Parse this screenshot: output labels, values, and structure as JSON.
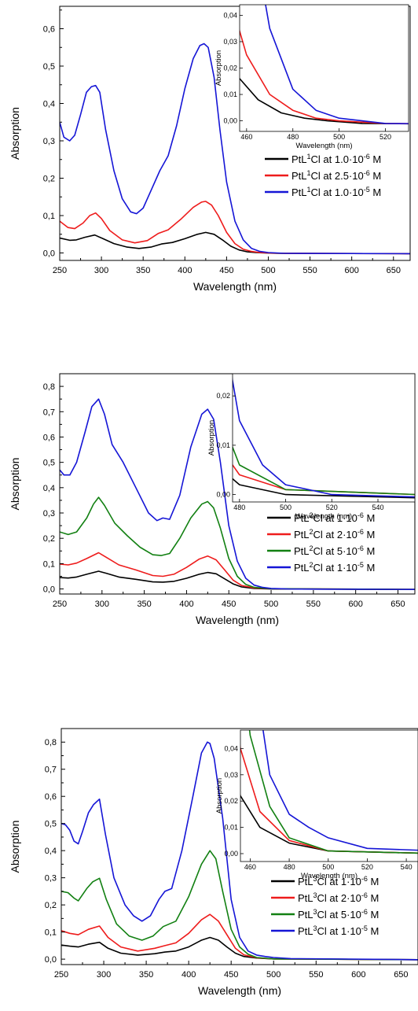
{
  "chart_data": [
    {
      "type": "line",
      "xlabel": "Wavelength (nm)",
      "ylabel": "Absorption",
      "xlim": [
        250,
        670
      ],
      "ylim": [
        -0.02,
        0.66
      ],
      "xticks": [
        "250",
        "300",
        "350",
        "400",
        "450",
        "500",
        "550",
        "600",
        "650"
      ],
      "yticks": [
        "0,0",
        "0,1",
        "0,2",
        "0,3",
        "0,4",
        "0,5",
        "0,6"
      ],
      "legend": "right",
      "series": [
        {
          "name": "PtL1Cl at 1.0·10-6 M",
          "label_parts": {
            "a": "PtL",
            "sup1": "1",
            "b": "Cl at 1.0·10",
            "sup2": "-6",
            "c": " M"
          },
          "color": "#000000",
          "x": [
            250,
            262,
            270,
            280,
            292,
            302,
            315,
            330,
            345,
            360,
            372,
            385,
            400,
            415,
            425,
            435,
            445,
            455,
            465,
            475,
            485,
            495,
            510,
            670
          ],
          "y": [
            0.04,
            0.034,
            0.035,
            0.042,
            0.048,
            0.038,
            0.025,
            0.016,
            0.012,
            0.016,
            0.024,
            0.028,
            0.038,
            0.05,
            0.055,
            0.05,
            0.035,
            0.018,
            0.008,
            0.003,
            0.001,
            0.0,
            -0.001,
            -0.002
          ]
        },
        {
          "name": "PtL1Cl at 2.5·10-6 M",
          "label_parts": {
            "a": "PtL",
            "sup1": "1",
            "b": "Cl at 2.5·10",
            "sup2": "-6",
            "c": " M"
          },
          "color": "#ee1c1c",
          "x": [
            250,
            260,
            268,
            278,
            286,
            293,
            300,
            310,
            325,
            340,
            355,
            368,
            380,
            395,
            410,
            420,
            425,
            432,
            440,
            450,
            460,
            470,
            480,
            490,
            500,
            520,
            670
          ],
          "y": [
            0.085,
            0.068,
            0.065,
            0.08,
            0.1,
            0.107,
            0.092,
            0.06,
            0.035,
            0.027,
            0.033,
            0.052,
            0.062,
            0.09,
            0.122,
            0.136,
            0.138,
            0.128,
            0.1,
            0.055,
            0.025,
            0.01,
            0.004,
            0.001,
            0.0,
            -0.001,
            -0.002
          ]
        },
        {
          "name": "PtL1Cl at 1.0·10-5 M",
          "label_parts": {
            "a": "PtL",
            "sup1": "1",
            "b": "Cl at 1.0·10",
            "sup2": "-5",
            "c": " M"
          },
          "color": "#1515d6",
          "x": [
            250,
            255,
            262,
            268,
            275,
            282,
            288,
            293,
            298,
            305,
            315,
            325,
            335,
            342,
            350,
            360,
            370,
            380,
            390,
            400,
            410,
            418,
            423,
            428,
            435,
            442,
            450,
            460,
            470,
            480,
            490,
            500,
            510,
            520,
            670
          ],
          "y": [
            0.35,
            0.31,
            0.3,
            0.315,
            0.37,
            0.43,
            0.445,
            0.448,
            0.43,
            0.33,
            0.22,
            0.145,
            0.11,
            0.105,
            0.12,
            0.17,
            0.22,
            0.26,
            0.34,
            0.44,
            0.52,
            0.555,
            0.56,
            0.55,
            0.47,
            0.33,
            0.19,
            0.085,
            0.035,
            0.012,
            0.004,
            0.001,
            0.0,
            -0.001,
            -0.002
          ]
        }
      ],
      "inset": {
        "xlabel": "Wavelength (nm)",
        "ylabel": "Absorption",
        "xlim": [
          457,
          530
        ],
        "ylim": [
          -0.004,
          0.044
        ],
        "xticks": [
          "460",
          "480",
          "500",
          "520"
        ],
        "yticks": [
          "0,00",
          "0,01",
          "0,02",
          "0,03",
          "0,04"
        ]
      }
    },
    {
      "type": "line",
      "xlabel": "Wavelength (nm)",
      "ylabel": "Absorption",
      "xlim": [
        250,
        670
      ],
      "ylim": [
        -0.02,
        0.85
      ],
      "xticks": [
        "250",
        "300",
        "350",
        "400",
        "450",
        "500",
        "550",
        "600",
        "650"
      ],
      "yticks": [
        "0,0",
        "0,1",
        "0,2",
        "0,3",
        "0,4",
        "0,5",
        "0,6",
        "0,7",
        "0,8"
      ],
      "legend": "right",
      "series": [
        {
          "name": "PtL2Cl at 1·10-6 M",
          "label_parts": {
            "a": "PtL",
            "sup1": "2",
            "b": "Cl at 1·10",
            "sup2": "-6",
            "c": " M"
          },
          "color": "#000000",
          "x": [
            250,
            260,
            270,
            282,
            296,
            305,
            320,
            340,
            360,
            372,
            385,
            400,
            415,
            425,
            435,
            445,
            455,
            465,
            480,
            500,
            670
          ],
          "y": [
            0.045,
            0.043,
            0.047,
            0.058,
            0.07,
            0.062,
            0.047,
            0.038,
            0.028,
            0.027,
            0.03,
            0.042,
            0.058,
            0.065,
            0.06,
            0.04,
            0.02,
            0.008,
            0.002,
            0.0,
            -0.002
          ]
        },
        {
          "name": "PtL2Cl at 2·10-6 M",
          "label_parts": {
            "a": "PtL",
            "sup1": "2",
            "b": "Cl at 2·10",
            "sup2": "-6",
            "c": " M"
          },
          "color": "#ee1c1c",
          "x": [
            250,
            260,
            270,
            282,
            296,
            305,
            320,
            340,
            360,
            372,
            385,
            400,
            415,
            425,
            435,
            445,
            455,
            465,
            480,
            500,
            670
          ],
          "y": [
            0.098,
            0.095,
            0.102,
            0.12,
            0.143,
            0.125,
            0.095,
            0.075,
            0.053,
            0.05,
            0.058,
            0.085,
            0.118,
            0.13,
            0.115,
            0.075,
            0.035,
            0.014,
            0.004,
            0.001,
            -0.002
          ]
        },
        {
          "name": "PtL2Cl at 5·10-6 M",
          "label_parts": {
            "a": "PtL",
            "sup1": "2",
            "b": "Cl at 5·10",
            "sup2": "-6",
            "c": " M"
          },
          "color": "#128012",
          "x": [
            250,
            260,
            270,
            282,
            290,
            296,
            303,
            315,
            330,
            345,
            360,
            370,
            380,
            392,
            405,
            418,
            425,
            432,
            440,
            450,
            460,
            470,
            480,
            500,
            670
          ],
          "y": [
            0.225,
            0.215,
            0.225,
            0.28,
            0.335,
            0.362,
            0.33,
            0.26,
            0.21,
            0.165,
            0.135,
            0.132,
            0.14,
            0.2,
            0.28,
            0.335,
            0.345,
            0.32,
            0.24,
            0.12,
            0.05,
            0.018,
            0.006,
            0.001,
            -0.002
          ]
        },
        {
          "name": "PtL2Cl at 1·10-5 M",
          "label_parts": {
            "a": "PtL",
            "sup1": "2",
            "b": "Cl at 1·10",
            "sup2": "-5",
            "c": " M"
          },
          "color": "#1515d6",
          "x": [
            250,
            255,
            262,
            270,
            280,
            288,
            296,
            303,
            312,
            325,
            340,
            355,
            365,
            372,
            380,
            392,
            405,
            418,
            425,
            432,
            440,
            450,
            460,
            470,
            480,
            490,
            500,
            520,
            670
          ],
          "y": [
            0.47,
            0.45,
            0.45,
            0.5,
            0.62,
            0.72,
            0.75,
            0.69,
            0.57,
            0.5,
            0.4,
            0.3,
            0.27,
            0.28,
            0.275,
            0.37,
            0.56,
            0.69,
            0.71,
            0.67,
            0.5,
            0.25,
            0.11,
            0.042,
            0.015,
            0.006,
            0.002,
            0.0,
            -0.002
          ]
        }
      ],
      "inset": {
        "xlabel": "Wavelength (nm)",
        "ylabel": "Absorption",
        "xlim": [
          477,
          556
        ],
        "ylim": [
          -0.0015,
          0.0245
        ],
        "xticks": [
          "480",
          "500",
          "520",
          "540"
        ],
        "yticks": [
          "0,00",
          "0,01",
          "0,02"
        ]
      }
    },
    {
      "type": "line",
      "xlabel": "Wavelength (nm)",
      "ylabel": "Absorption",
      "xlim": [
        250,
        670
      ],
      "ylim": [
        -0.02,
        0.85
      ],
      "xticks": [
        "250",
        "300",
        "350",
        "400",
        "450",
        "500",
        "550",
        "600",
        "650"
      ],
      "yticks": [
        "0,0",
        "0,1",
        "0,2",
        "0,3",
        "0,4",
        "0,5",
        "0,6",
        "0,7",
        "0,8"
      ],
      "legend": "right",
      "series": [
        {
          "name": "PtL3Cl at 1·10-6 M",
          "label_parts": {
            "a": "PtL",
            "sup1": "3",
            "b": "Cl at 1·10",
            "sup2": "-6",
            "c": " M"
          },
          "color": "#000000",
          "x": [
            250,
            260,
            270,
            282,
            295,
            305,
            320,
            340,
            360,
            372,
            385,
            400,
            415,
            425,
            435,
            445,
            455,
            465,
            480,
            500,
            670
          ],
          "y": [
            0.052,
            0.048,
            0.045,
            0.055,
            0.062,
            0.04,
            0.022,
            0.015,
            0.02,
            0.026,
            0.03,
            0.045,
            0.07,
            0.08,
            0.07,
            0.045,
            0.022,
            0.01,
            0.004,
            0.001,
            -0.002
          ]
        },
        {
          "name": "PtL3Cl at 2·10-6 M",
          "label_parts": {
            "a": "PtL",
            "sup1": "3",
            "b": "Cl at 2·10",
            "sup2": "-6",
            "c": " M"
          },
          "color": "#ee1c1c",
          "x": [
            250,
            260,
            270,
            282,
            295,
            305,
            320,
            340,
            360,
            372,
            385,
            400,
            415,
            425,
            435,
            445,
            455,
            465,
            480,
            500,
            670
          ],
          "y": [
            0.105,
            0.095,
            0.09,
            0.11,
            0.122,
            0.08,
            0.045,
            0.03,
            0.04,
            0.05,
            0.06,
            0.095,
            0.145,
            0.165,
            0.14,
            0.09,
            0.04,
            0.016,
            0.005,
            0.001,
            -0.002
          ]
        },
        {
          "name": "PtL3Cl at 5·10-6 M",
          "label_parts": {
            "a": "PtL",
            "sup1": "3",
            "b": "Cl at 5·10",
            "sup2": "-6",
            "c": " M"
          },
          "color": "#128012",
          "x": [
            250,
            258,
            265,
            270,
            280,
            287,
            295,
            303,
            315,
            330,
            345,
            358,
            370,
            385,
            400,
            415,
            425,
            432,
            440,
            450,
            460,
            470,
            480,
            500,
            670
          ],
          "y": [
            0.25,
            0.245,
            0.225,
            0.215,
            0.26,
            0.285,
            0.298,
            0.22,
            0.13,
            0.085,
            0.07,
            0.085,
            0.12,
            0.14,
            0.23,
            0.35,
            0.4,
            0.37,
            0.25,
            0.11,
            0.045,
            0.018,
            0.006,
            0.001,
            -0.002
          ]
        },
        {
          "name": "PtL3Cl at 1·10-5 M",
          "label_parts": {
            "a": "PtL",
            "sup1": "3",
            "b": "Cl at 1·10",
            "sup2": "-5",
            "c": " M"
          },
          "color": "#1515d6",
          "x": [
            250,
            255,
            260,
            265,
            270,
            275,
            282,
            288,
            295,
            302,
            312,
            325,
            335,
            345,
            355,
            365,
            372,
            380,
            392,
            405,
            415,
            422,
            425,
            430,
            440,
            450,
            460,
            470,
            480,
            490,
            500,
            520,
            670
          ],
          "y": [
            0.5,
            0.495,
            0.475,
            0.435,
            0.425,
            0.47,
            0.54,
            0.57,
            0.59,
            0.46,
            0.3,
            0.2,
            0.16,
            0.14,
            0.16,
            0.22,
            0.25,
            0.26,
            0.4,
            0.6,
            0.76,
            0.8,
            0.795,
            0.74,
            0.52,
            0.22,
            0.08,
            0.03,
            0.015,
            0.01,
            0.006,
            0.002,
            -0.002
          ]
        }
      ],
      "inset": {
        "xlabel": "Wavelength (nm)",
        "ylabel": "Absorption",
        "xlim": [
          455,
          546
        ],
        "ylim": [
          -0.003,
          0.047
        ],
        "xticks": [
          "460",
          "480",
          "500",
          "520",
          "540"
        ],
        "yticks": [
          "0,00",
          "0,01",
          "0,02",
          "0,03",
          "0,04"
        ]
      }
    }
  ]
}
